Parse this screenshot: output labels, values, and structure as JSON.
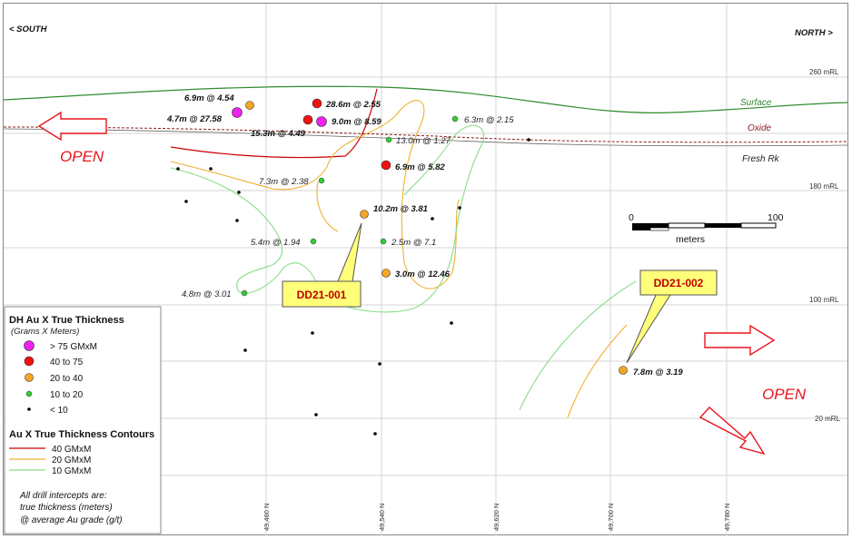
{
  "direction": {
    "left": "< SOUTH",
    "right": "NORTH >"
  },
  "elevations": [
    "260 mRL",
    "180 mRL",
    "100 mRL",
    "20 mRL"
  ],
  "northings": [
    "49,460 N",
    "49,540 N",
    "49,620 N",
    "49,700 N",
    "49,780 N"
  ],
  "layers": {
    "surface": "Surface",
    "oxide": "Oxide",
    "fresh": "Fresh Rk"
  },
  "open_label": "OPEN",
  "intercepts": [
    {
      "text": "6.9m @ 4.54",
      "class": "20-40",
      "bold": true
    },
    {
      "text": "4.7m @ 27.58",
      "class": ">75",
      "bold": true
    },
    {
      "text": "28.6m @ 2.55",
      "class": "40-75",
      "bold": true
    },
    {
      "text": "9.0m @ 8.59",
      "class": ">75",
      "bold": true
    },
    {
      "text": "15.3m @ 4.49",
      "class": "40-75",
      "bold": true
    },
    {
      "text": "6.3m @ 2.15",
      "class": "10-20",
      "bold": false
    },
    {
      "text": "13.0m @ 1.27",
      "class": "10-20",
      "bold": false
    },
    {
      "text": "6.9m @ 5.82",
      "class": "40-75",
      "bold": true
    },
    {
      "text": "7.3m @ 2.38",
      "class": "10-20",
      "bold": false
    },
    {
      "text": "10.2m @ 3.81",
      "class": "20-40",
      "bold": true
    },
    {
      "text": "5.4m @ 1.94",
      "class": "10-20",
      "bold": false
    },
    {
      "text": "2.5m @ 7.1",
      "class": "10-20",
      "bold": false
    },
    {
      "text": "3.0m @ 12.46",
      "class": "20-40",
      "bold": true
    },
    {
      "text": "4.8m @ 3.01",
      "class": "10-20",
      "bold": false
    },
    {
      "text": "7.8m @ 3.19",
      "class": "20-40",
      "bold": true
    }
  ],
  "callouts": [
    "DD21-001",
    "DD21-002"
  ],
  "scale_bar": {
    "start": "0",
    "end": "100",
    "unit": "meters"
  },
  "legend": {
    "title": "DH Au X True Thickness",
    "subtitle": "(Grams X Meters)",
    "items": [
      {
        "label": "> 75 GMxM",
        "color": "#ee22ee"
      },
      {
        "label": "40  to  75",
        "color": "#ee1111"
      },
      {
        "label": "20  to  40",
        "color": "#f5a623"
      },
      {
        "label": "10  to  20",
        "color": "#33cc33"
      },
      {
        "label": "< 10",
        "color": "#000000"
      }
    ],
    "contour_title": "Au X True Thickness Contours",
    "contours": [
      {
        "label": "40 GMxM",
        "color": "#cc0000"
      },
      {
        "label": "20 GMxM",
        "color": "#f0b030"
      },
      {
        "label": "10 GMxM",
        "color": "#88dd88"
      }
    ],
    "note": [
      "All drill intercepts are:",
      "true thickness (meters)",
      "@ average Au grade (g/t)"
    ]
  },
  "colors": {
    "surface": "#2e8b2e",
    "oxide": "#8b1a1a",
    "fresh": "#333333",
    "open": "#e8141c",
    "callout_fill": "#ffff7a",
    "gridline": "#d0d0d0"
  }
}
